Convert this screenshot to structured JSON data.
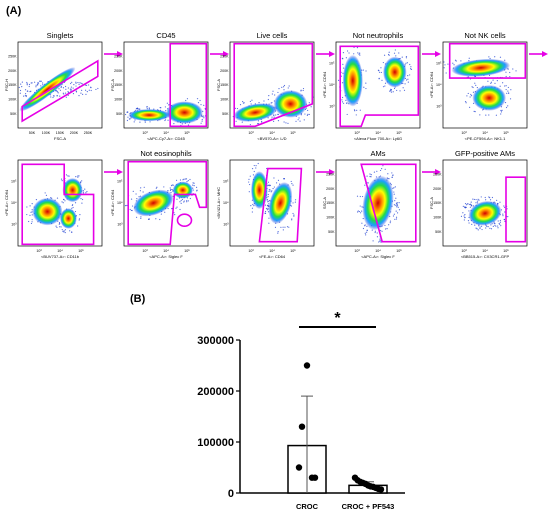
{
  "labels": {
    "panel_a": "(A)",
    "panel_b": "(B)"
  },
  "colors": {
    "gate": "#e600e6",
    "arrow": "#e600e6",
    "bar": "#000000"
  },
  "gating_panels": [
    {
      "title": "Singlets",
      "xlabel": "FSC-A",
      "ylabel": "FSC-H",
      "xticks": [
        "50K",
        "100K",
        "150K",
        "200K",
        "250K"
      ],
      "yticks": [
        "50K",
        "100K",
        "150K",
        "200K",
        "250K"
      ],
      "arrow": true
    },
    {
      "title": "CD45",
      "xlabel": "<APC-Cy7-A>: CD45",
      "ylabel": "FSC-A",
      "xticks": [
        "10³",
        "10⁴",
        "10⁵"
      ],
      "yticks": [
        "50K",
        "100K",
        "150K",
        "200K",
        "250K"
      ],
      "arrow": true
    },
    {
      "title": "Live cells",
      "xlabel": "<BV570-A>: L/D",
      "ylabel": "FSC-A",
      "xticks": [
        "10³",
        "10⁴",
        "10⁵"
      ],
      "yticks": [
        "50K",
        "100K",
        "150K",
        "200K",
        "250K"
      ],
      "arrow": true
    },
    {
      "title": "Not neutrophils",
      "xlabel": "<Alexa Fluor 700-A>: Ly6G",
      "ylabel": "<PE-A>: CD64",
      "xticks": [
        "10³",
        "10⁴",
        "10⁵"
      ],
      "yticks": [
        "10³",
        "10⁴",
        "10⁵"
      ],
      "arrow": true
    },
    {
      "title": "Not NK cells",
      "xlabel": "<PE-CF594-A>: NK1.1",
      "ylabel": "<PE-A>: CD64",
      "xticks": [
        "10³",
        "10⁴",
        "10⁵"
      ],
      "yticks": [
        "10³",
        "10⁴",
        "10⁵"
      ],
      "arrow": true
    },
    {
      "title": "",
      "xlabel": "<BUV737-A>: CD11b",
      "ylabel": "<PE-A>: CD64",
      "xticks": [
        "10³",
        "10⁴",
        "10⁵"
      ],
      "yticks": [
        "10³",
        "10⁴",
        "10⁵"
      ],
      "arrow": true
    },
    {
      "title": "Not eosinophils",
      "xlabel": "<APC-A>: Siglec F",
      "ylabel": "<PE-A>: CD64",
      "xticks": [
        "10³",
        "10⁴",
        "10⁵"
      ],
      "yticks": [
        "10³",
        "10⁴",
        "10⁵"
      ],
      "arrow": false
    },
    {
      "title": "",
      "xlabel": "<FE-A>: CD64",
      "ylabel": "<BV421-A>: MHC",
      "xticks": [
        "10³",
        "10⁴",
        "10⁵"
      ],
      "yticks": [
        "10³",
        "10⁴",
        "10⁵"
      ],
      "arrow": true
    },
    {
      "title": "AMs",
      "xlabel": "<APC-A>: Siglec F",
      "ylabel": "SSC-A",
      "xticks": [
        "10³",
        "10⁴",
        "10⁵"
      ],
      "yticks": [
        "50K",
        "100K",
        "150K",
        "200K",
        "250K"
      ],
      "arrow": true
    },
    {
      "title": "GFP-positive AMs",
      "xlabel": "<BB515-A>: CX3CR1-GFP",
      "ylabel": "FSC-A",
      "xticks": [
        "10³",
        "10⁴",
        "10⁵"
      ],
      "yticks": [
        "50K",
        "100K",
        "150K",
        "200K",
        "250K"
      ],
      "arrow": false
    }
  ],
  "chart_data": {
    "type": "bar",
    "categories": [
      "CROC",
      "CROC + PF543"
    ],
    "values": [
      93000,
      15000
    ],
    "error_sd": [
      97000,
      7000
    ],
    "points": [
      [
        250000,
        130000,
        50000,
        30000,
        30000
      ],
      [
        30000,
        25000,
        22000,
        20000,
        18000,
        15000,
        13000,
        12000,
        10000,
        8000,
        7000
      ]
    ],
    "ylim": [
      0,
      300000
    ],
    "yticks": [
      "0",
      "100000",
      "200000",
      "300000"
    ],
    "yticks_values": [
      0,
      100000,
      200000,
      300000
    ],
    "significance": "*",
    "title": "",
    "xlabel": "",
    "ylabel": "",
    "grid": false
  }
}
